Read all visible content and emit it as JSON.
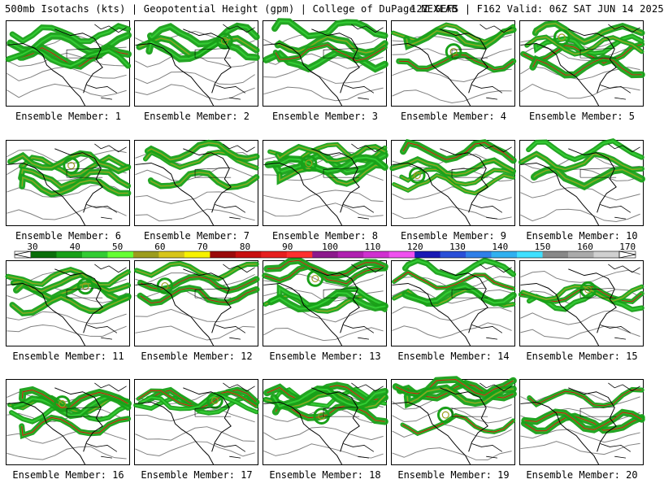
{
  "header": {
    "left": "500mb Isotachs (kts) | Geopotential Height (gpm) | College of DuPage NEXLAB",
    "right": "12Z GEFS | F162 Valid: 06Z SAT JUN 14 2025"
  },
  "panels": [
    {
      "caption": "Ensemble Member: 1"
    },
    {
      "caption": "Ensemble Member: 2"
    },
    {
      "caption": "Ensemble Member: 3"
    },
    {
      "caption": "Ensemble Member: 4"
    },
    {
      "caption": "Ensemble Member: 5"
    },
    {
      "caption": "Ensemble Member: 6"
    },
    {
      "caption": "Ensemble Member: 7"
    },
    {
      "caption": "Ensemble Member: 8"
    },
    {
      "caption": "Ensemble Member: 9"
    },
    {
      "caption": "Ensemble Member: 10"
    },
    {
      "caption": "Ensemble Member: 11"
    },
    {
      "caption": "Ensemble Member: 12"
    },
    {
      "caption": "Ensemble Member: 13"
    },
    {
      "caption": "Ensemble Member: 14"
    },
    {
      "caption": "Ensemble Member: 15"
    },
    {
      "caption": "Ensemble Member: 16"
    },
    {
      "caption": "Ensemble Member: 17"
    },
    {
      "caption": "Ensemble Member: 18"
    },
    {
      "caption": "Ensemble Member: 19"
    },
    {
      "caption": "Ensemble Member: 20"
    }
  ],
  "colorbar": {
    "labels": [
      "30",
      "40",
      "50",
      "60",
      "70",
      "80",
      "90",
      "100",
      "110",
      "120",
      "130",
      "140",
      "150",
      "160",
      "170"
    ],
    "colors": [
      "#0a6e0a",
      "#18a018",
      "#33cc33",
      "#66ff33",
      "#9c9c1c",
      "#d7c51a",
      "#f7f200",
      "#9a0a0a",
      "#c80f0f",
      "#e61e1e",
      "#ff3030",
      "#8c1a8c",
      "#b020b0",
      "#d030d0",
      "#f050f0",
      "#1a1ab4",
      "#2a4fd8",
      "#2f7fe8",
      "#30b0f0",
      "#40e0ff",
      "#888888",
      "#aaaaaa",
      "#d0d0d0"
    ]
  },
  "colors": {
    "jet_low": "#18a018",
    "jet_mid": "#9c9c1c",
    "jet_high": "#c80f0f",
    "height_contour": "#808080",
    "coastline": "#000000"
  }
}
